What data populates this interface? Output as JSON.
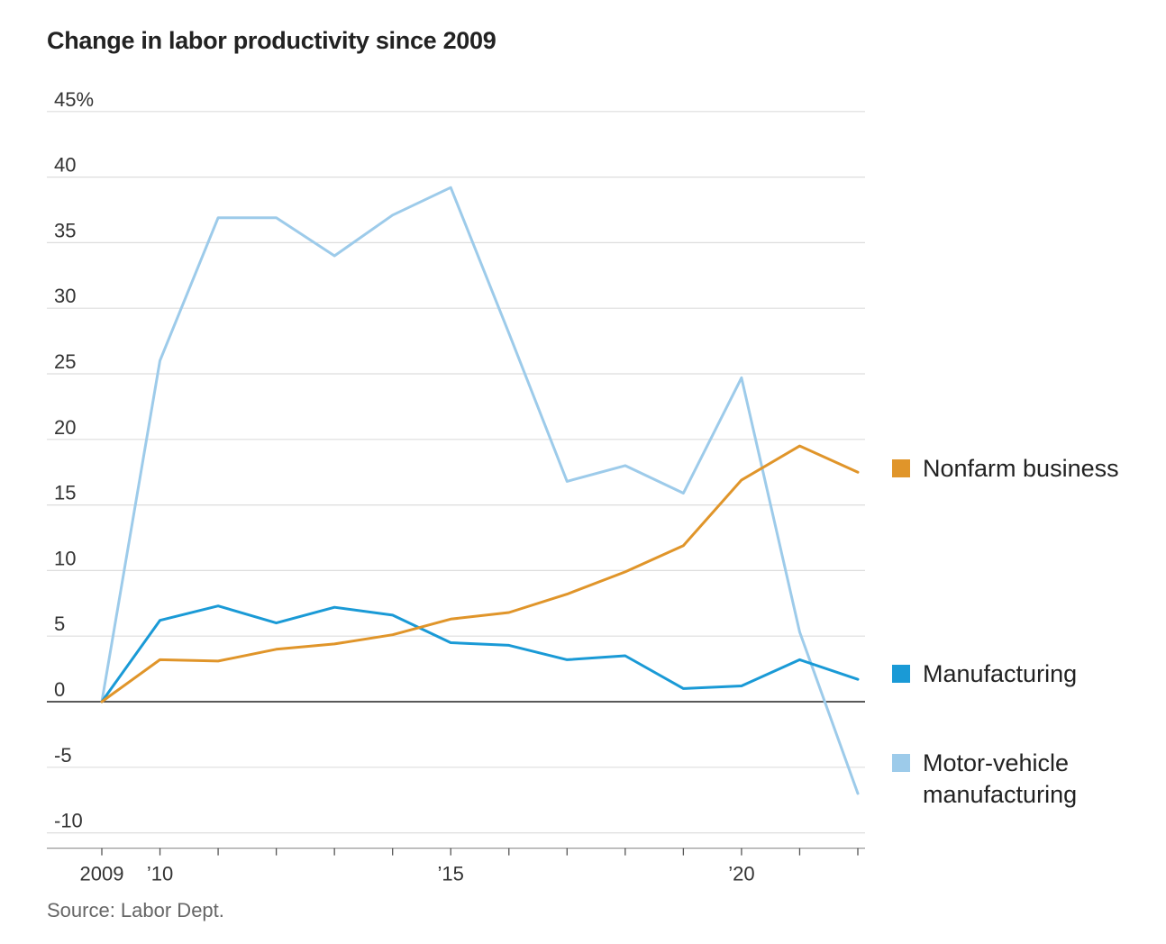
{
  "chart_data": {
    "type": "line",
    "title": "Change in labor productivity since 2009",
    "source": "Source: Labor Dept.",
    "x": [
      2009,
      2010,
      2011,
      2012,
      2013,
      2014,
      2015,
      2016,
      2017,
      2018,
      2019,
      2020,
      2021,
      2022
    ],
    "x_tick_labels": [
      {
        "x": 2009,
        "label": "2009"
      },
      {
        "x": 2010,
        "label": "’10"
      },
      {
        "x": 2015,
        "label": "’15"
      },
      {
        "x": 2020,
        "label": "’20"
      }
    ],
    "y_tick_labels": [
      {
        "y": 45,
        "label": "45%"
      },
      {
        "y": 40,
        "label": "40"
      },
      {
        "y": 35,
        "label": "35"
      },
      {
        "y": 30,
        "label": "30"
      },
      {
        "y": 25,
        "label": "25"
      },
      {
        "y": 20,
        "label": "20"
      },
      {
        "y": 15,
        "label": "15"
      },
      {
        "y": 10,
        "label": "10"
      },
      {
        "y": 5,
        "label": "5"
      },
      {
        "y": 0,
        "label": "0"
      },
      {
        "y": -5,
        "label": "-5"
      },
      {
        "y": -10,
        "label": "-10"
      }
    ],
    "ylim": [
      -10,
      45
    ],
    "xlim": [
      2009,
      2022
    ],
    "grid": true,
    "legend_position": "right, beside line ends",
    "series": [
      {
        "name": "Nonfarm business",
        "color": "#e0952a",
        "values": [
          0,
          3.2,
          3.1,
          4.0,
          4.4,
          5.1,
          6.3,
          6.8,
          8.2,
          9.9,
          11.9,
          16.9,
          19.5,
          17.5
        ]
      },
      {
        "name": "Manufacturing",
        "color": "#1a9ad6",
        "values": [
          0,
          6.2,
          7.3,
          6.0,
          7.2,
          6.6,
          4.5,
          4.3,
          3.2,
          3.5,
          1.0,
          1.2,
          3.2,
          1.7
        ]
      },
      {
        "name": "Motor-vehicle manufacturing",
        "color": "#9dcbea",
        "values": [
          0,
          26.0,
          36.9,
          36.9,
          34.0,
          37.1,
          39.2,
          28.1,
          16.8,
          18.0,
          15.9,
          24.7,
          5.3,
          -7.0
        ]
      }
    ]
  }
}
